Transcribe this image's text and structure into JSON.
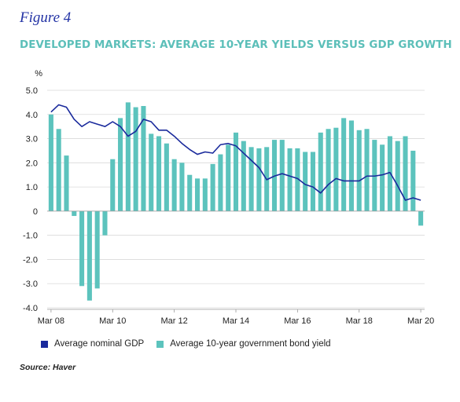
{
  "figure_label": "Figure 4",
  "title": "DEVELOPED MARKETS: AVERAGE 10-YEAR YIELDS VERSUS GDP GROWTH",
  "source": "Source: Haver",
  "colors": {
    "line": "#1a2a9c",
    "bar": "#5cc3bd",
    "title": "#5cbfb9",
    "grid": "#d9d9d9"
  },
  "chart_data": {
    "type": "bar",
    "ylabel": "%",
    "ylim": [
      -4.0,
      5.0
    ],
    "yticks": [
      "5.0",
      "4.0",
      "3.0",
      "2.0",
      "1.0",
      "0",
      "-1.0",
      "-2.0",
      "-3.0",
      "-4.0"
    ],
    "xtick_labels": [
      "Mar 08",
      "Mar 10",
      "Mar 12",
      "Mar 14",
      "Mar 16",
      "Mar 18",
      "Mar 20"
    ],
    "categories": [
      "Mar 08",
      "Jun 08",
      "Sep 08",
      "Dec 08",
      "Mar 09",
      "Jun 09",
      "Sep 09",
      "Dec 09",
      "Mar 10",
      "Jun 10",
      "Sep 10",
      "Dec 10",
      "Mar 11",
      "Jun 11",
      "Sep 11",
      "Dec 11",
      "Mar 12",
      "Jun 12",
      "Sep 12",
      "Dec 12",
      "Mar 13",
      "Jun 13",
      "Sep 13",
      "Dec 13",
      "Mar 14",
      "Jun 14",
      "Sep 14",
      "Dec 14",
      "Mar 15",
      "Jun 15",
      "Sep 15",
      "Dec 15",
      "Mar 16",
      "Jun 16",
      "Sep 16",
      "Dec 16",
      "Mar 17",
      "Jun 17",
      "Sep 17",
      "Dec 17",
      "Mar 18",
      "Jun 18",
      "Sep 18",
      "Dec 18",
      "Mar 19",
      "Jun 19",
      "Sep 19",
      "Dec 19",
      "Mar 20"
    ],
    "series": [
      {
        "name": "Average nominal GDP",
        "kind": "line",
        "values": [
          4.1,
          4.4,
          4.3,
          3.8,
          3.5,
          3.7,
          3.6,
          3.5,
          3.7,
          3.5,
          3.1,
          3.3,
          3.8,
          3.7,
          3.35,
          3.35,
          3.1,
          2.8,
          2.55,
          2.35,
          2.45,
          2.4,
          2.75,
          2.8,
          2.7,
          2.4,
          2.1,
          1.8,
          1.3,
          1.45,
          1.55,
          1.45,
          1.35,
          1.1,
          1.0,
          0.75,
          1.1,
          1.35,
          1.25,
          1.25,
          1.25,
          1.45,
          1.45,
          1.5,
          1.6,
          1.05,
          0.45,
          0.55,
          0.45
        ]
      },
      {
        "name": "Average 10-year government bond yield",
        "kind": "bar",
        "values": [
          4.0,
          3.4,
          2.3,
          -0.2,
          -3.1,
          -3.7,
          -3.2,
          -1.0,
          2.15,
          3.85,
          4.5,
          4.3,
          4.35,
          3.2,
          3.1,
          2.8,
          2.15,
          2.0,
          1.5,
          1.35,
          1.35,
          1.95,
          2.35,
          2.75,
          3.25,
          2.9,
          2.65,
          2.6,
          2.65,
          2.95,
          2.95,
          2.6,
          2.6,
          2.45,
          2.45,
          3.25,
          3.4,
          3.45,
          3.85,
          3.75,
          3.35,
          3.4,
          2.95,
          2.75,
          3.1,
          2.9,
          3.1,
          2.5,
          -0.6
        ]
      }
    ],
    "grid": "horizontal",
    "legend_position": "bottom"
  }
}
